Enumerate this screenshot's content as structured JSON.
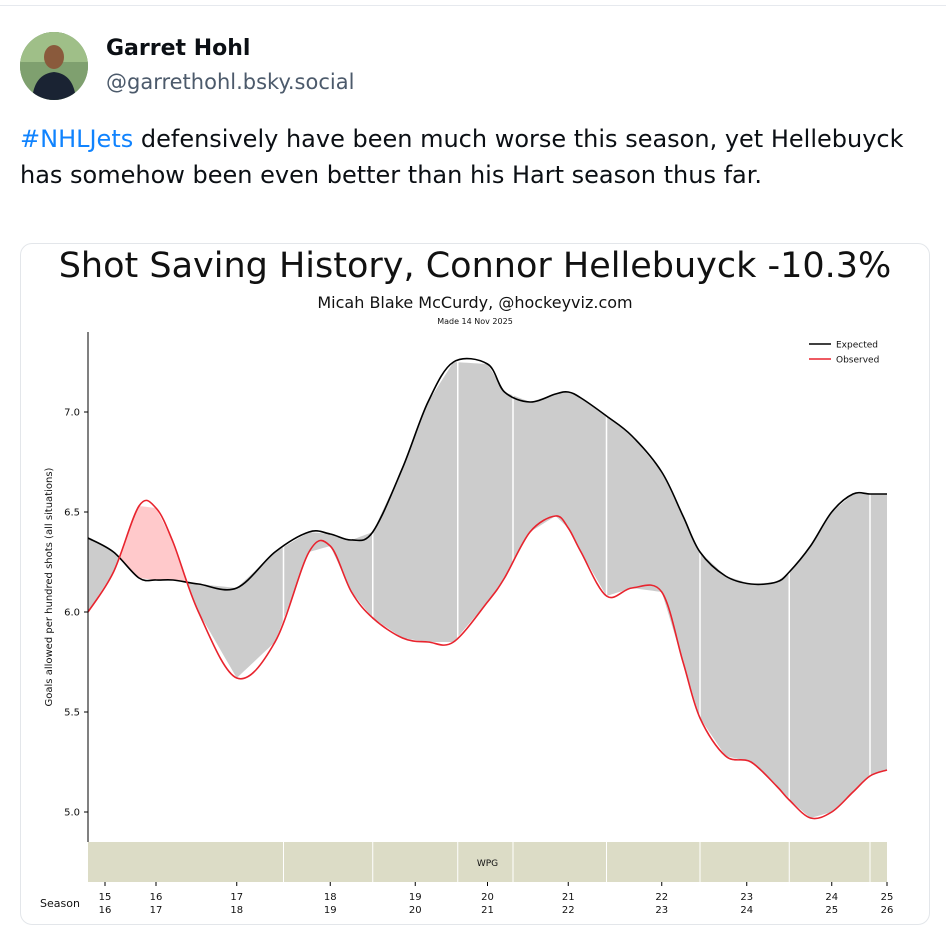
{
  "post": {
    "author_name": "Garret Hohl",
    "author_handle": "@garrethohl.bsky.social",
    "hashtag": "#NHLJets",
    "text": " defensively have been much worse this season, yet Hellebuyck has somehow been even better than his Hart season thus far."
  },
  "chart_data": {
    "type": "line",
    "title": "Shot Saving History, Connor Hellebuyck -10.3%",
    "subtitle": "Micah Blake McCurdy, @hockeyviz.com",
    "made": "Made 14 Nov 2025",
    "ylabel": "Goals allowed per hundred shots (all situations)",
    "xlabel": "Season",
    "ylim": [
      4.85,
      7.4
    ],
    "yticks": [
      5.0,
      5.5,
      6.0,
      6.5,
      7.0
    ],
    "team_band": "WPG",
    "legend": {
      "position": "top-right",
      "entries": [
        "Expected",
        "Observed"
      ]
    },
    "seasons": [
      "15 16",
      "16 17",
      "17 18",
      "18 19",
      "19 20",
      "20 21",
      "21 22",
      "22 23",
      "23 24",
      "24 25",
      "25 26"
    ],
    "season_x": [
      0.2,
      0.8,
      1.75,
      2.85,
      3.85,
      4.7,
      5.65,
      6.75,
      7.75,
      8.75,
      9.4
    ],
    "season_boundaries": [
      2.3,
      3.35,
      4.35,
      5.0,
      6.1,
      7.2,
      8.25,
      9.2
    ],
    "x": [
      0,
      0.3,
      0.6,
      0.8,
      1.0,
      1.3,
      1.75,
      2.2,
      2.6,
      2.85,
      3.1,
      3.35,
      3.7,
      4.0,
      4.3,
      4.7,
      4.9,
      5.2,
      5.5,
      5.65,
      5.8,
      6.1,
      6.4,
      6.75,
      7.0,
      7.2,
      7.5,
      7.8,
      8.1,
      8.25,
      8.5,
      8.75,
      9.0,
      9.2,
      9.4
    ],
    "series": [
      {
        "name": "Expected",
        "color": "#000000",
        "values": [
          6.37,
          6.3,
          6.17,
          6.16,
          6.16,
          6.14,
          6.12,
          6.3,
          6.4,
          6.39,
          6.36,
          6.4,
          6.72,
          7.05,
          7.25,
          7.24,
          7.1,
          7.05,
          7.09,
          7.1,
          7.07,
          6.98,
          6.88,
          6.7,
          6.48,
          6.3,
          6.18,
          6.14,
          6.15,
          6.2,
          6.33,
          6.5,
          6.59,
          6.59,
          6.59
        ]
      },
      {
        "name": "Observed",
        "color": "#e8242e",
        "values": [
          6.0,
          6.2,
          6.53,
          6.52,
          6.35,
          6.0,
          5.67,
          5.85,
          6.3,
          6.33,
          6.1,
          5.97,
          5.87,
          5.85,
          5.85,
          6.05,
          6.17,
          6.4,
          6.48,
          6.42,
          6.3,
          6.08,
          6.12,
          6.1,
          5.75,
          5.47,
          5.28,
          5.25,
          5.13,
          5.06,
          4.97,
          5.0,
          5.1,
          5.18,
          5.21
        ]
      }
    ]
  }
}
